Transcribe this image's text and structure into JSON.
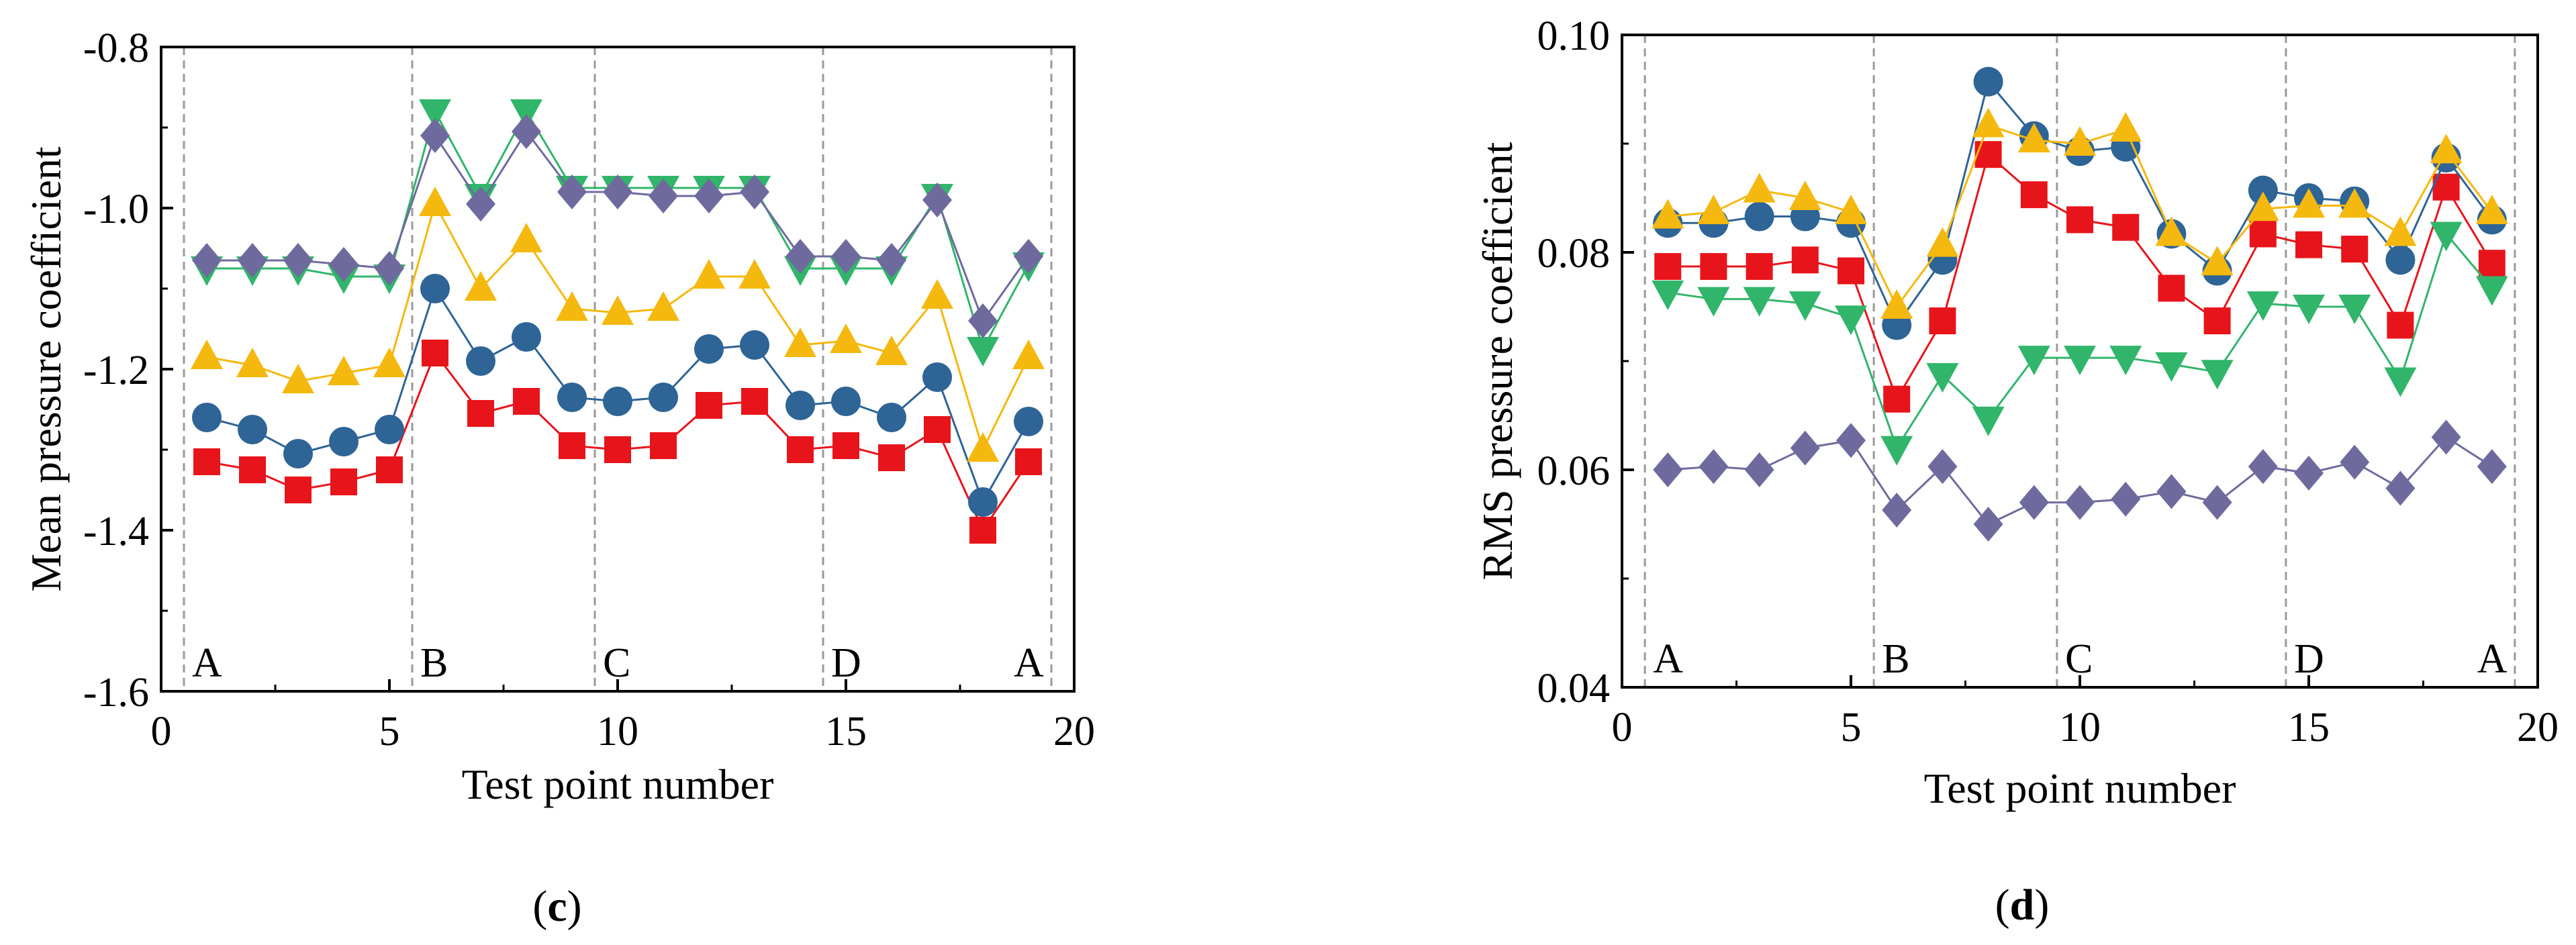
{
  "chart_data": [
    {
      "type": "line",
      "panel": "c",
      "caption_open": "(",
      "caption_letter": "c",
      "caption_close": ")",
      "xlabel": "Test point number",
      "ylabel": "Mean pressure coefficient",
      "xlim": [
        0,
        20
      ],
      "ylim": [
        -1.6,
        -0.8
      ],
      "xticks": [
        0,
        5,
        10,
        15,
        20
      ],
      "yticks": [
        -1.6,
        -1.4,
        -1.2,
        -1.0,
        -0.8
      ],
      "ytick_labels": [
        "-1.6",
        "-1.4",
        "-1.2",
        "-1.0",
        "-0.8"
      ],
      "xtick_labels": [
        "0",
        "5",
        "10",
        "15",
        "20"
      ],
      "grid": false,
      "vlines": [
        0.5,
        5.5,
        9.5,
        14.5,
        19.5
      ],
      "region_labels": [
        {
          "text": "A",
          "x": 1
        },
        {
          "text": "B",
          "x": 6
        },
        {
          "text": "C",
          "x": 10
        },
        {
          "text": "D",
          "x": 15
        },
        {
          "text": "A",
          "x": 19
        }
      ],
      "x": [
        1,
        2,
        3,
        4,
        5,
        6,
        7,
        8,
        9,
        10,
        11,
        12,
        13,
        14,
        15,
        16,
        17,
        18,
        19
      ],
      "series": [
        {
          "name": "series-red-square",
          "marker": "square",
          "color": "#e8141b",
          "values": [
            -1.315,
            -1.325,
            -1.35,
            -1.34,
            -1.325,
            -1.18,
            -1.255,
            -1.24,
            -1.295,
            -1.3,
            -1.295,
            -1.245,
            -1.24,
            -1.3,
            -1.295,
            -1.31,
            -1.275,
            -1.4,
            -1.315
          ]
        },
        {
          "name": "series-blue-circle",
          "marker": "circle",
          "color": "#2e6496",
          "values": [
            -1.26,
            -1.275,
            -1.305,
            -1.29,
            -1.275,
            -1.1,
            -1.19,
            -1.16,
            -1.235,
            -1.24,
            -1.235,
            -1.175,
            -1.17,
            -1.245,
            -1.24,
            -1.26,
            -1.21,
            -1.365,
            -1.265
          ]
        },
        {
          "name": "series-yellow-triangle-up",
          "marker": "triangle-up",
          "color": "#f5b80e",
          "values": [
            -1.185,
            -1.195,
            -1.215,
            -1.205,
            -1.195,
            -0.995,
            -1.1,
            -1.04,
            -1.125,
            -1.13,
            -1.125,
            -1.085,
            -1.085,
            -1.17,
            -1.165,
            -1.18,
            -1.11,
            -1.3,
            -1.185
          ]
        },
        {
          "name": "series-green-triangle-down",
          "marker": "triangle-down",
          "color": "#31b56b",
          "values": [
            -1.075,
            -1.075,
            -1.075,
            -1.085,
            -1.085,
            -0.88,
            -0.985,
            -0.88,
            -0.975,
            -0.975,
            -0.975,
            -0.975,
            -0.975,
            -1.075,
            -1.075,
            -1.075,
            -0.985,
            -1.175,
            -1.07
          ]
        },
        {
          "name": "series-purple-diamond",
          "marker": "diamond",
          "color": "#6f6a9e",
          "values": [
            -1.065,
            -1.065,
            -1.065,
            -1.07,
            -1.075,
            -0.91,
            -0.995,
            -0.905,
            -0.98,
            -0.98,
            -0.985,
            -0.985,
            -0.98,
            -1.06,
            -1.06,
            -1.065,
            -0.99,
            -1.14,
            -1.06
          ]
        }
      ]
    },
    {
      "type": "line",
      "panel": "d",
      "caption_open": "(",
      "caption_letter": "d",
      "caption_close": ")",
      "xlabel": "Test point number",
      "ylabel": "RMS pressure coefficient",
      "xlim": [
        0,
        20
      ],
      "ylim": [
        0.04,
        0.1
      ],
      "xticks": [
        0,
        5,
        10,
        15,
        20
      ],
      "yticks": [
        0.04,
        0.06,
        0.08,
        0.1
      ],
      "ytick_labels": [
        "0.04",
        "0.06",
        "0.08",
        "0.10"
      ],
      "xtick_labels": [
        "0",
        "5",
        "10",
        "15",
        "20"
      ],
      "grid": false,
      "vlines": [
        0.5,
        5.5,
        9.5,
        14.5,
        19.5
      ],
      "region_labels": [
        {
          "text": "A",
          "x": 1
        },
        {
          "text": "B",
          "x": 6
        },
        {
          "text": "C",
          "x": 10
        },
        {
          "text": "D",
          "x": 15
        },
        {
          "text": "A",
          "x": 19
        }
      ],
      "x": [
        1,
        2,
        3,
        4,
        5,
        6,
        7,
        8,
        9,
        10,
        11,
        12,
        13,
        14,
        15,
        16,
        17,
        18,
        19
      ],
      "series": [
        {
          "name": "series-red-square",
          "marker": "square",
          "color": "#e8141b",
          "values": [
            0.0787,
            0.0787,
            0.0787,
            0.0793,
            0.0783,
            0.0665,
            0.0737,
            0.089,
            0.0853,
            0.083,
            0.0823,
            0.0767,
            0.0737,
            0.0817,
            0.0807,
            0.0803,
            0.0733,
            0.086,
            0.079
          ]
        },
        {
          "name": "series-blue-circle",
          "marker": "circle",
          "color": "#2e6496",
          "values": [
            0.0827,
            0.0827,
            0.0833,
            0.0833,
            0.0827,
            0.0733,
            0.0793,
            0.0957,
            0.0907,
            0.0893,
            0.0897,
            0.0817,
            0.0783,
            0.0857,
            0.085,
            0.0847,
            0.0793,
            0.0887,
            0.083
          ]
        },
        {
          "name": "series-yellow-triangle-up",
          "marker": "triangle-up",
          "color": "#f5b80e",
          "values": [
            0.0833,
            0.0837,
            0.0857,
            0.085,
            0.0837,
            0.075,
            0.0807,
            0.0917,
            0.0903,
            0.09,
            0.0913,
            0.0817,
            0.079,
            0.084,
            0.0843,
            0.0843,
            0.0817,
            0.0893,
            0.0837
          ]
        },
        {
          "name": "series-green-triangle-down",
          "marker": "triangle-down",
          "color": "#31b56b",
          "values": [
            0.0763,
            0.0757,
            0.0757,
            0.0753,
            0.074,
            0.062,
            0.0687,
            0.0647,
            0.0703,
            0.0703,
            0.0703,
            0.0697,
            0.069,
            0.0753,
            0.075,
            0.075,
            0.0683,
            0.0817,
            0.0767
          ]
        },
        {
          "name": "series-purple-diamond",
          "marker": "diamond",
          "color": "#6f6a9e",
          "values": [
            0.06,
            0.0603,
            0.06,
            0.062,
            0.0627,
            0.0563,
            0.0603,
            0.055,
            0.057,
            0.057,
            0.0573,
            0.058,
            0.057,
            0.0603,
            0.0597,
            0.0607,
            0.0583,
            0.063,
            0.0603
          ]
        }
      ]
    }
  ]
}
